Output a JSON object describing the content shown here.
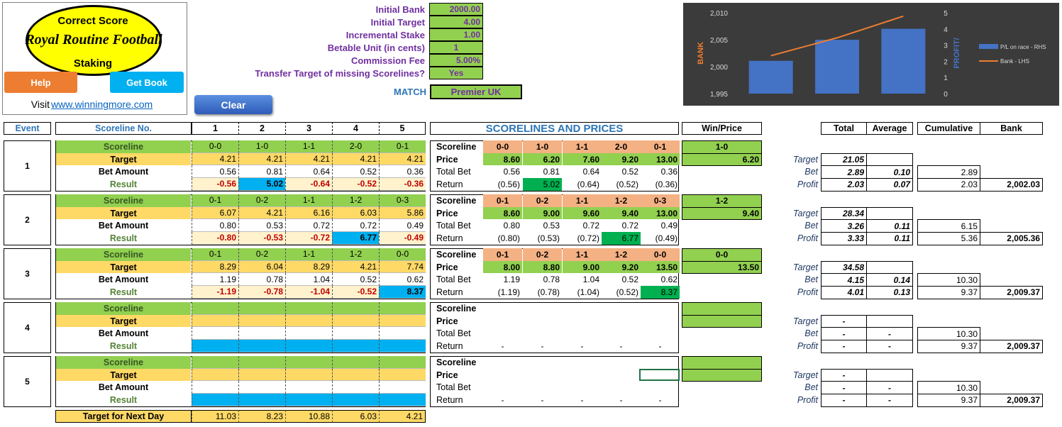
{
  "logo": {
    "line1": "Correct Score",
    "title": "Royal Routine Football",
    "line3": "Staking",
    "help": "Help",
    "get_book": "Get Book",
    "visit": "Visit",
    "link": "www.winningmore.com"
  },
  "settings": [
    {
      "label": "Initial Bank",
      "value": "2000.00"
    },
    {
      "label": "Initial Target",
      "value": "4.00"
    },
    {
      "label": "Incremental Stake",
      "value": "1.00"
    },
    {
      "label": "Betable Unit (in cents)",
      "value": "1"
    },
    {
      "label": "Commission Fee",
      "value": "5.00%"
    },
    {
      "label": "Transfer Target of missing Scorelines?",
      "value": "Yes"
    }
  ],
  "match": {
    "label": "MATCH",
    "value": "Premier UK"
  },
  "clear": "Clear",
  "header": {
    "event": "Event",
    "scoreline_no": "Scoreline No.",
    "numbers": [
      "1",
      "2",
      "3",
      "4",
      "5"
    ],
    "prices": "SCORELINES AND PRICES",
    "win_price": "Win/Price",
    "total": "Total",
    "average": "Average",
    "cumulative": "Cumulative",
    "bank": "Bank"
  },
  "row_labels": {
    "left": [
      "Scoreline",
      "Target",
      "Bet Amount",
      "Result"
    ],
    "right": [
      "Scoreline",
      "Price",
      "Total Bet",
      "Return"
    ],
    "summary": [
      "Target",
      "Bet",
      "Profit"
    ]
  },
  "events": [
    {
      "number": "1",
      "scorelines": [
        "0-0",
        "1-0",
        "1-1",
        "2-0",
        "0-1"
      ],
      "targets": [
        "4.21",
        "4.21",
        "4.21",
        "4.21",
        "4.21"
      ],
      "bets": [
        "0.56",
        "0.81",
        "0.64",
        "0.52",
        "0.36"
      ],
      "results": [
        "-0.56",
        "5.02",
        "-0.64",
        "-0.52",
        "-0.36"
      ],
      "prices": [
        "8.60",
        "6.20",
        "7.60",
        "9.20",
        "13.00"
      ],
      "total_bets": [
        "0.56",
        "0.81",
        "0.64",
        "0.52",
        "0.36"
      ],
      "returns": [
        "(0.56)",
        "5.02",
        "(0.64)",
        "(0.52)",
        "(0.36)"
      ],
      "win": {
        "scoreline": "1-0",
        "price": "6.20"
      },
      "summary": {
        "target": "21.05",
        "bet": "2.89",
        "bet_average": "0.10",
        "bet_cumulative": "2.89",
        "profit": "2.03",
        "profit_average": "0.07",
        "profit_cumulative": "2.03",
        "bank": "2,002.03"
      }
    },
    {
      "number": "2",
      "scorelines": [
        "0-1",
        "0-2",
        "1-1",
        "1-2",
        "0-3"
      ],
      "targets": [
        "6.07",
        "4.21",
        "6.16",
        "6.03",
        "5.86"
      ],
      "bets": [
        "0.80",
        "0.53",
        "0.72",
        "0.72",
        "0.49"
      ],
      "results": [
        "-0.80",
        "-0.53",
        "-0.72",
        "6.77",
        "-0.49"
      ],
      "prices": [
        "8.60",
        "9.00",
        "9.60",
        "9.40",
        "13.00"
      ],
      "total_bets": [
        "0.80",
        "0.53",
        "0.72",
        "0.72",
        "0.49"
      ],
      "returns": [
        "(0.80)",
        "(0.53)",
        "(0.72)",
        "6.77",
        "(0.49)"
      ],
      "win": {
        "scoreline": "1-2",
        "price": "9.40"
      },
      "summary": {
        "target": "28.34",
        "bet": "3.26",
        "bet_average": "0.11",
        "bet_cumulative": "6.15",
        "profit": "3.33",
        "profit_average": "0.11",
        "profit_cumulative": "5.36",
        "bank": "2,005.36"
      }
    },
    {
      "number": "3",
      "scorelines": [
        "0-1",
        "0-2",
        "1-1",
        "1-2",
        "0-0"
      ],
      "targets": [
        "8.29",
        "6.04",
        "8.29",
        "4.21",
        "7.74"
      ],
      "bets": [
        "1.19",
        "0.78",
        "1.04",
        "0.52",
        "0.62"
      ],
      "results": [
        "-1.19",
        "-0.78",
        "-1.04",
        "-0.52",
        "8.37"
      ],
      "prices": [
        "8.00",
        "8.80",
        "9.00",
        "9.20",
        "13.50"
      ],
      "total_bets": [
        "1.19",
        "0.78",
        "1.04",
        "0.52",
        "0.62"
      ],
      "returns": [
        "(1.19)",
        "(0.78)",
        "(1.04)",
        "(0.52)",
        "8.37"
      ],
      "win": {
        "scoreline": "0-0",
        "price": "13.50"
      },
      "summary": {
        "target": "34.58",
        "bet": "4.15",
        "bet_average": "0.14",
        "bet_cumulative": "10.30",
        "profit": "4.01",
        "profit_average": "0.13",
        "profit_cumulative": "9.37",
        "bank": "2,009.37"
      }
    },
    {
      "number": "4",
      "returns": [
        "-",
        "-",
        "-",
        "-",
        "-"
      ],
      "summary": {
        "target": "-",
        "bet": "-",
        "bet_average": "-",
        "bet_cumulative": "10.30",
        "profit": "-",
        "profit_average": "-",
        "profit_cumulative": "9.37",
        "bank": "2,009.37"
      }
    },
    {
      "number": "5",
      "returns": [
        "-",
        "-",
        "-",
        "-",
        "-"
      ],
      "summary": {
        "target": "-",
        "bet": "-",
        "bet_average": "-",
        "bet_cumulative": "10.30",
        "profit": "-",
        "profit_average": "-",
        "profit_cumulative": "9.37",
        "bank": "2,009.37"
      }
    }
  ],
  "next_day": {
    "label": "Target for Next Day",
    "values": [
      "11.03",
      "8.23",
      "10.88",
      "6.03",
      "4.21"
    ]
  },
  "chart_data": {
    "type": "combo",
    "categories": [
      null,
      null,
      null
    ],
    "series": [
      {
        "name": "P/L on race - RHS",
        "type": "bar",
        "axis": "y2",
        "color": "#4472c4",
        "values": [
          2.03,
          3.33,
          4.01
        ]
      },
      {
        "name": "Bank - LHS",
        "type": "line",
        "color": "#ed7d31",
        "values": [
          2002.03,
          2005.36,
          2009.37
        ]
      }
    ],
    "y_label": "BANK",
    "y2_label": "PROFIT/",
    "ylim": [
      1995,
      2010
    ],
    "yticks": [
      {
        "value": 1995,
        "label": "1,995"
      },
      {
        "value": 2000,
        "label": "2,000"
      },
      {
        "value": 2005,
        "label": "2,005"
      },
      {
        "value": 2010,
        "label": "2,010"
      }
    ],
    "y2lim": [
      0,
      5
    ],
    "y2ticks": [
      0,
      1,
      2,
      3,
      4,
      5
    ],
    "legend": "right"
  }
}
